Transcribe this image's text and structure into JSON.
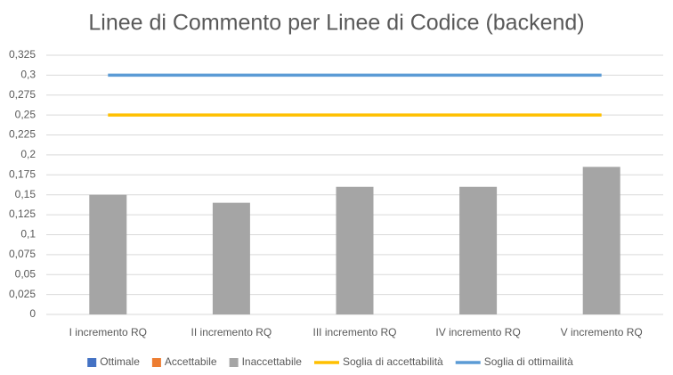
{
  "chart_data": {
    "type": "bar",
    "title": "Linee di Commento per Linee di Codice (backend)",
    "categories": [
      "I incremento RQ",
      "II incremento RQ",
      "III incremento RQ",
      "IV incremento RQ",
      "V incremento RQ"
    ],
    "series": [
      {
        "name": "Ottimale",
        "color": "#4472c4",
        "type": "bar",
        "values": [
          null,
          null,
          null,
          null,
          null
        ]
      },
      {
        "name": "Accettabile",
        "color": "#ed7d31",
        "type": "bar",
        "values": [
          null,
          null,
          null,
          null,
          null
        ]
      },
      {
        "name": "Inaccettabile",
        "color": "#a5a5a5",
        "type": "bar",
        "values": [
          0.15,
          0.14,
          0.16,
          0.16,
          0.185
        ]
      },
      {
        "name": "Soglia di accettabilità",
        "color": "#ffc000",
        "type": "line",
        "values": [
          0.25,
          0.25,
          0.25,
          0.25,
          0.25
        ]
      },
      {
        "name": "Soglia di ottimailità",
        "color": "#5b9bd5",
        "type": "line",
        "values": [
          0.3,
          0.3,
          0.3,
          0.3,
          0.3
        ]
      }
    ],
    "ylim": [
      0,
      0.325
    ],
    "yticks": [
      0,
      {
        "value": 0.025,
        "label": "0,025"
      },
      {
        "value": 0.05,
        "label": "0,05"
      },
      {
        "value": 0.075,
        "label": "0,075"
      },
      {
        "value": 0.1,
        "label": "0,1"
      },
      {
        "value": 0.125,
        "label": "0,125"
      },
      {
        "value": 0.15,
        "label": "0,15"
      },
      {
        "value": 0.175,
        "label": "0,175"
      },
      {
        "value": 0.2,
        "label": "0,2"
      },
      {
        "value": 0.225,
        "label": "0,225"
      },
      {
        "value": 0.25,
        "label": "0,25"
      },
      {
        "value": 0.275,
        "label": "0,275"
      },
      {
        "value": 0.3,
        "label": "0,3"
      },
      {
        "value": 0.325,
        "label": "0,325"
      }
    ],
    "grid": true,
    "legend": "bottom"
  }
}
